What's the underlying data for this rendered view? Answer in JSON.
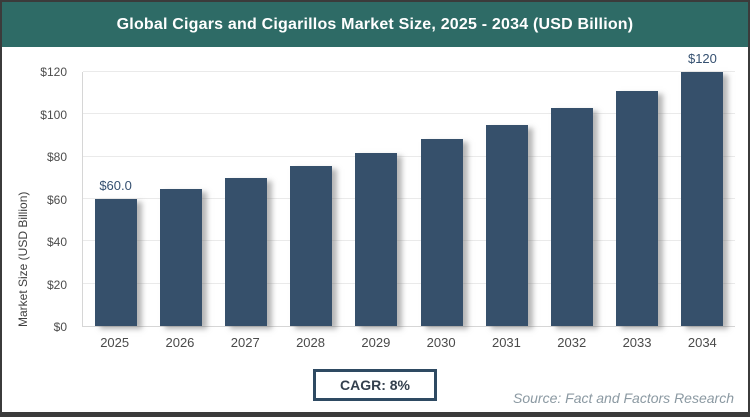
{
  "chart_data": {
    "type": "bar",
    "title": "Global Cigars and Cigarillos Market Size, 2025 - 2034 (USD Billion)",
    "categories": [
      "2025",
      "2026",
      "2027",
      "2028",
      "2029",
      "2030",
      "2031",
      "2032",
      "2033",
      "2034"
    ],
    "values": [
      60.0,
      64.8,
      70.0,
      75.6,
      81.6,
      88.2,
      95.2,
      102.9,
      111.1,
      120.0
    ],
    "point_labels": [
      "$60.0",
      null,
      null,
      null,
      null,
      null,
      null,
      null,
      null,
      "$120"
    ],
    "xlabel": "",
    "ylabel": "Market Size (USD Billion)",
    "ylim": [
      0,
      120
    ],
    "yticks": [
      0,
      20,
      40,
      60,
      80,
      100,
      120
    ],
    "ytick_labels": [
      "$0",
      "$20",
      "$40",
      "$60",
      "$80",
      "$100",
      "$120"
    ],
    "grid": true,
    "legend": false,
    "bar_color": "#36506b"
  },
  "footer": {
    "cagr_label": "CAGR: 8%",
    "source": "Source: Fact and Factors Research"
  },
  "colors": {
    "header_bg": "#2e6b66",
    "bar": "#36506b",
    "cagr_border": "#2e4a62",
    "source_text": "#8b99a2",
    "frame_border": "#3b3b3b"
  }
}
